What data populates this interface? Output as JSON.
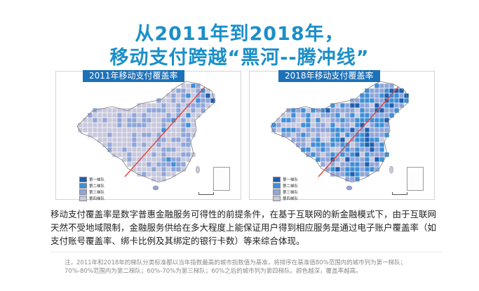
{
  "title_line1": "从2011年到2018年，",
  "title_line2": "移动支付跨越“黑河--腾冲线”",
  "maps": {
    "left": {
      "label": "2011年移动支付覆盖率",
      "legend": [
        "第一梯队",
        "第二梯队",
        "第三梯队",
        "第四梯队"
      ],
      "tier_share": [
        0.03,
        0.08,
        0.25,
        0.64
      ]
    },
    "right": {
      "label": "2018年移动支付覆盖率",
      "legend": [
        "第一梯队",
        "第二梯队",
        "第三梯队",
        "第四梯队"
      ],
      "tier_share": [
        0.18,
        0.27,
        0.3,
        0.25
      ]
    }
  },
  "tier_colors": [
    "#1f5fb0",
    "#3f8fd6",
    "#8fa6d9",
    "#c8c8dd"
  ],
  "divider_line_color": "#e0443c",
  "paragraph": "移动支付覆盖率是数字普惠金融服务可得性的前提条件，在基于互联网的新金融模式下，由于互联网天然不受地域限制，金融服务供给在多大程度上能保证用户得到相应服务是通过电子账户覆盖率（如支付账号覆盖率、绑卡比例及其绑定的银行卡数）等来综合体现。",
  "note_line1": "注，2011年和2018年的梯队分类标准都以当年指数最高的城市指数值为基准，将排序在基准值80%范围内的城市列为第一梯队；",
  "note_line2": "70%-80%范围内为第二梯队；60%-70%为第三梯队；60%之后的城市列为第四梯队。颜色越深，覆盖率越高。"
}
